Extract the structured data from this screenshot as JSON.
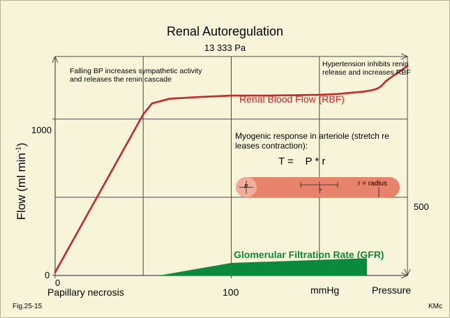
{
  "chart_data": {
    "type": "line",
    "title": "Renal Autoregulation",
    "subtitle": "13 333 Pa",
    "ylabel": "Flow (ml min",
    "ylabel_sup": "-1",
    "ylabel_close": ")",
    "xlabel": "mmHg",
    "x_axis_label_right": "Pressure",
    "x_ticks": [
      {
        "value": 0,
        "label": "0"
      },
      {
        "value": 100,
        "label": "100"
      }
    ],
    "y_ticks": [
      {
        "value": 0,
        "label": "0"
      },
      {
        "value": 1000,
        "label": "1000"
      }
    ],
    "right_axis_tick": "500",
    "xlim": [
      0,
      200
    ],
    "ylim": [
      0,
      1400
    ],
    "grid": true,
    "series": [
      {
        "name": "Renal Blood Flow (RBF)",
        "color": "#c62828",
        "x": [
          0,
          50,
          55,
          65,
          80,
          100,
          120,
          150,
          160,
          170,
          175,
          180,
          183,
          185,
          188,
          200
        ],
        "y": [
          20,
          1030,
          1100,
          1130,
          1140,
          1150,
          1150,
          1155,
          1160,
          1170,
          1175,
          1185,
          1195,
          1210,
          1245,
          1340
        ]
      },
      {
        "name": "Glomerular Filtration Rate (GFR)",
        "color": "#0a8a3c",
        "type": "area",
        "x": [
          59,
          100,
          177
        ],
        "y": [
          0,
          80,
          110
        ]
      }
    ],
    "annotations": {
      "left": "Falling BP increases sympathetic activity and releases the renin cascade",
      "right": "Hypertension inhibits renin release and increases RBF",
      "bottom_left": "Papillary necrosis",
      "myogenic": "Myogenic response in arteriole (stretch re leases contraction):",
      "equation": "T =    P * r",
      "vessel_p": "P",
      "vessel_t": "T",
      "vessel_r": "r = radius"
    },
    "colors": {
      "background": "#f8f4d9",
      "grid": "#4a4a4a",
      "vessel_fill": "#e8836b"
    }
  },
  "footer": {
    "left": "Fig.25-15",
    "right": "KMc"
  }
}
